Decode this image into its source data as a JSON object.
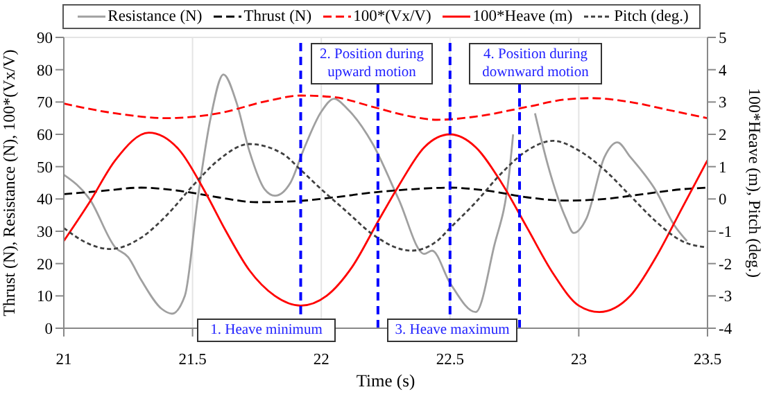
{
  "chart_data": {
    "type": "line",
    "xlabel": "Time (s)",
    "ylabel": "Thrust (N), Resistance (N), 100*(Vx/V)",
    "y2label": "100*Heave (m), Pitch (deg.)",
    "xlim": [
      21,
      23.5
    ],
    "xticks": [
      21,
      21.5,
      22,
      22.5,
      23,
      23.5
    ],
    "ylim": [
      0,
      90
    ],
    "yticks": [
      0,
      10,
      20,
      30,
      40,
      50,
      60,
      70,
      80,
      90
    ],
    "y2lim": [
      -4,
      5
    ],
    "y2ticks": [
      -4,
      -3,
      -2,
      -1,
      0,
      1,
      2,
      3,
      4,
      5
    ],
    "grid": true,
    "legend": "top",
    "marker": "none",
    "series": [
      {
        "name": "Resistance (N)",
        "color": "#a0a0a0",
        "line_style": "solid",
        "x": [
          21,
          21.1,
          21.2,
          21.25,
          21.3,
          21.38,
          21.42,
          21.47,
          21.52,
          21.57,
          21.62,
          21.67,
          21.72,
          21.78,
          21.82,
          21.88,
          21.93,
          22,
          22.05,
          22.1,
          22.2,
          22.3,
          22.4,
          22.43,
          22.5,
          22.6,
          22.67,
          22.73,
          22.745,
          22.77,
          22.8,
          22.83,
          22.88,
          22.95,
          22.98,
          23.03,
          23.1,
          23.15,
          23.2,
          23.3,
          23.37,
          23.42
        ],
        "values": [
          47.5,
          40,
          25,
          22,
          15,
          6,
          4.5,
          10,
          40,
          65,
          78.5,
          70,
          55,
          43,
          41,
          45,
          55,
          67,
          71,
          68,
          57,
          40,
          23,
          24,
          14,
          5,
          25,
          48,
          60,
          null,
          null,
          66.5,
          50.5,
          34,
          29.5,
          34,
          53,
          57.5,
          53,
          42.5,
          32,
          27
        ]
      },
      {
        "name": "Thrust (N)",
        "color": "#000000",
        "line_style": "dashed",
        "x": [
          21,
          21.15,
          21.3,
          21.45,
          21.6,
          21.75,
          21.9,
          22.05,
          22.2,
          22.35,
          22.5,
          22.65,
          22.8,
          22.95,
          23.1,
          23.25,
          23.4,
          23.5
        ],
        "values": [
          41.5,
          42.5,
          43.5,
          42.5,
          40.5,
          39,
          39.3,
          40.5,
          42,
          43,
          43.5,
          42.5,
          40.5,
          39.5,
          40,
          41.5,
          43,
          43.5
        ]
      },
      {
        "name": "100*(Vx/V)",
        "color": "#ff0000",
        "line_style": "dashed",
        "x": [
          21,
          21.2,
          21.4,
          21.6,
          21.8,
          21.92,
          22.05,
          22.2,
          22.35,
          22.45,
          22.6,
          22.8,
          22.95,
          23.05,
          23.2,
          23.35,
          23.5
        ],
        "values": [
          69.5,
          66.5,
          65,
          66.5,
          70.5,
          72,
          71.5,
          68.5,
          65.5,
          64.5,
          65.5,
          68.5,
          70.8,
          71.2,
          70,
          67.5,
          65
        ]
      },
      {
        "name": "100*Heave (m)",
        "color": "#ff0000",
        "line_style": "solid",
        "axis": "y2",
        "x": [
          21,
          21.1,
          21.2,
          21.33,
          21.45,
          21.55,
          21.63,
          21.72,
          21.82,
          21.92,
          22.02,
          22.12,
          22.22,
          22.3,
          22.4,
          22.5,
          22.6,
          22.7,
          22.8,
          22.9,
          23,
          23.08,
          23.2,
          23.3,
          23.4,
          23.5
        ],
        "values": [
          -1.3,
          -0.1,
          1.2,
          2.05,
          1.5,
          0.2,
          -1,
          -2.2,
          -3,
          -3.3,
          -3,
          -2.1,
          -0.7,
          0.4,
          1.6,
          2,
          1.6,
          0.5,
          -0.9,
          -2.3,
          -3.3,
          -3.5,
          -3,
          -1.8,
          -0.3,
          1.2
        ]
      },
      {
        "name": "Pitch (deg.)",
        "color": "#404040",
        "line_style": "dotted",
        "axis": "y2",
        "x": [
          21,
          21.1,
          21.18,
          21.3,
          21.4,
          21.5,
          21.6,
          21.72,
          21.85,
          21.92,
          22,
          22.1,
          22.2,
          22.35,
          22.45,
          22.5,
          22.6,
          22.7,
          22.8,
          22.9,
          23,
          23.1,
          23.2,
          23.3,
          23.4,
          23.5
        ],
        "values": [
          -0.9,
          -1.4,
          -1.55,
          -1.2,
          -0.5,
          0.4,
          1.2,
          1.7,
          1.4,
          0.9,
          0.3,
          -0.4,
          -1.1,
          -1.6,
          -1.3,
          -0.9,
          -0.1,
          0.8,
          1.5,
          1.8,
          1.5,
          0.9,
          0.1,
          -0.7,
          -1.3,
          -1.5
        ]
      }
    ],
    "ref_lines": [
      {
        "axis": "x",
        "value": 21.92,
        "color": "#0000ff",
        "line_style": "dashed"
      },
      {
        "axis": "x",
        "value": 22.22,
        "color": "#0000ff",
        "line_style": "dashed"
      },
      {
        "axis": "x",
        "value": 22.5,
        "color": "#0000ff",
        "line_style": "dashed"
      },
      {
        "axis": "x",
        "value": 22.77,
        "color": "#0000ff",
        "line_style": "dashed"
      }
    ],
    "annotations": [
      "1. Heave minimum",
      "2. Position during upward motion",
      "3. Heave maximum",
      "4. Position during downward motion"
    ]
  }
}
